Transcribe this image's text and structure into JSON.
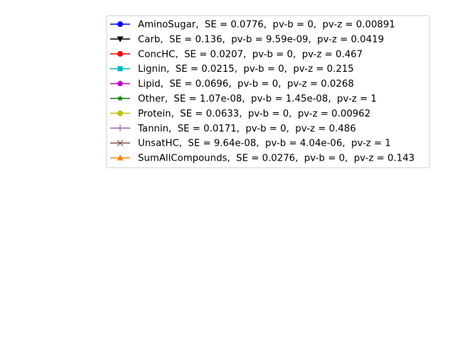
{
  "chart_data": {
    "type": "line",
    "title": "",
    "xlabel": "",
    "ylabel": "",
    "grid": false,
    "axes_visible": false,
    "legend_placement": "top-right",
    "series": [
      {
        "name": "AminoSugar,  SE = 0.0776,  pv-b = 0,  pv-z = 0.00891",
        "color": "#0000ff",
        "marker": "circle",
        "values": []
      },
      {
        "name": "Carb,  SE = 0.136,  pv-b = 9.59e-09,  pv-z = 0.0419",
        "color": "#000000",
        "marker": "triangle-down",
        "values": []
      },
      {
        "name": "ConcHC,  SE = 0.0207,  pv-b = 0,  pv-z = 0.467",
        "color": "#ff0000",
        "marker": "circle",
        "values": []
      },
      {
        "name": "Lignin,  SE = 0.0215,  pv-b = 0,  pv-z = 0.215",
        "color": "#00bfbf",
        "marker": "square",
        "values": []
      },
      {
        "name": "Lipid,  SE = 0.0696,  pv-b = 0,  pv-z = 0.0268",
        "color": "#bf00bf",
        "marker": "pentagon",
        "values": []
      },
      {
        "name": "Other,  SE = 1.07e-08,  pv-b = 1.45e-08,  pv-z = 1",
        "color": "#008000",
        "marker": "star",
        "values": []
      },
      {
        "name": "Protein,  SE = 0.0633,  pv-b = 0,  pv-z = 0.00962",
        "color": "#bfbf00",
        "marker": "hexagon",
        "values": []
      },
      {
        "name": "Tannin,  SE = 0.0171,  pv-b = 0,  pv-z = 0.486",
        "color": "#9467bd",
        "marker": "plus",
        "values": []
      },
      {
        "name": "UnsatHC,  SE = 9.64e-08,  pv-b = 4.04e-06,  pv-z = 1",
        "color": "#8c564b",
        "marker": "x",
        "values": []
      },
      {
        "name": "SumAllCompounds,  SE = 0.0276,  pv-b = 0,  pv-z = 0.143",
        "color": "#ff7f0e",
        "marker": "triangle-up",
        "values": []
      }
    ]
  }
}
